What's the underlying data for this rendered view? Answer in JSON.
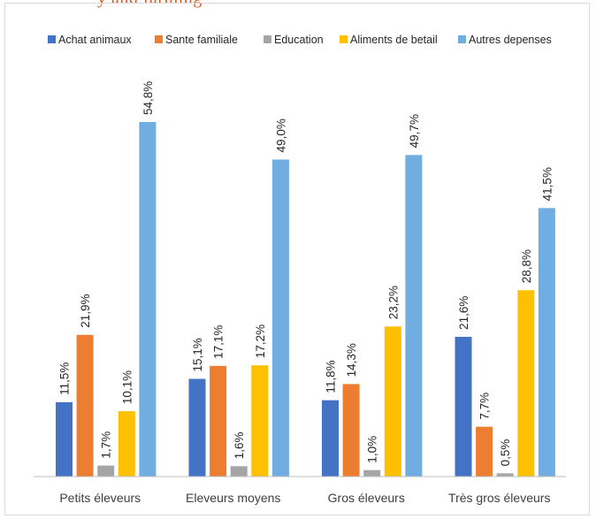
{
  "page": {
    "top_caption": "y and farming"
  },
  "chart_data": {
    "type": "bar",
    "title": "",
    "categories": [
      "Petits éleveurs",
      "Eleveurs moyens",
      "Gros éleveurs",
      "Très gros éleveurs"
    ],
    "series": [
      {
        "name": "Achat animaux",
        "color": "#4472c4",
        "values": [
          11.5,
          15.1,
          11.8,
          21.6
        ],
        "labels": [
          "11,5%",
          "15,1%",
          "11,8%",
          "21,6%"
        ]
      },
      {
        "name": "Sante familiale",
        "color": "#ed7d31",
        "values": [
          21.9,
          17.1,
          14.3,
          7.7
        ],
        "labels": [
          "21,9%",
          "17,1%",
          "14,3%",
          "7,7%"
        ]
      },
      {
        "name": "Education",
        "color": "#a5a5a5",
        "values": [
          1.7,
          1.6,
          1.0,
          0.5
        ],
        "labels": [
          "1,7%",
          "1,6%",
          "1,0%",
          "0,5%"
        ]
      },
      {
        "name": "Aliments de betail",
        "color": "#ffc000",
        "values": [
          10.1,
          17.2,
          23.2,
          28.8
        ],
        "labels": [
          "10,1%",
          "17,2%",
          "23,2%",
          "28,8%"
        ]
      },
      {
        "name": "Autres depenses",
        "color": "#70ade0",
        "values": [
          54.8,
          49.0,
          49.7,
          41.5
        ],
        "labels": [
          "54,8%",
          "49,0%",
          "49,7%",
          "41,5%"
        ]
      }
    ],
    "xlabel": "",
    "ylabel": "",
    "ylim": [
      0,
      55
    ],
    "grid": false,
    "legend_position": "top",
    "axis_color": "#bfbfbf"
  }
}
